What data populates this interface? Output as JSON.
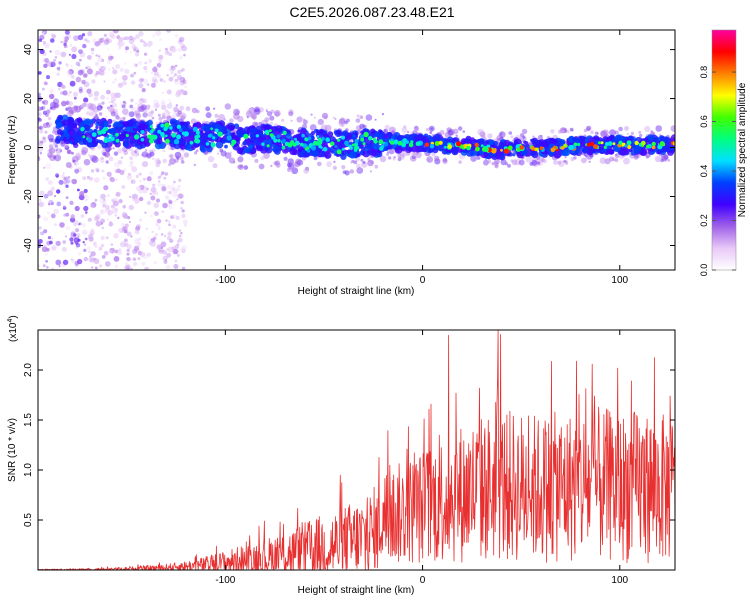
{
  "title": "C2E5.2026.087.23.48.E21",
  "chart_data": [
    {
      "type": "heatmap",
      "name": "spectrogram",
      "xlabel": "Height of straight line (km)",
      "ylabel": "Frequency (Hz)",
      "xlim": [
        -195,
        128
      ],
      "ylim": [
        -50,
        48
      ],
      "xticks": [
        -100,
        0,
        100
      ],
      "yticks": [
        -40,
        -20,
        0,
        20,
        40
      ],
      "ridge": [
        {
          "x": -190,
          "y": 8
        },
        {
          "x": -180,
          "y": 7
        },
        {
          "x": -170,
          "y": 6
        },
        {
          "x": -160,
          "y": 6
        },
        {
          "x": -150,
          "y": 6
        },
        {
          "x": -140,
          "y": 5
        },
        {
          "x": -130,
          "y": 6
        },
        {
          "x": -120,
          "y": 5
        },
        {
          "x": -110,
          "y": 4
        },
        {
          "x": -100,
          "y": 5
        },
        {
          "x": -90,
          "y": 3
        },
        {
          "x": -80,
          "y": 4
        },
        {
          "x": -70,
          "y": 3
        },
        {
          "x": -60,
          "y": 2
        },
        {
          "x": -50,
          "y": 2
        },
        {
          "x": -40,
          "y": 1
        },
        {
          "x": -30,
          "y": 2
        },
        {
          "x": -20,
          "y": 2
        },
        {
          "x": -10,
          "y": 2
        },
        {
          "x": 0,
          "y": 2
        },
        {
          "x": 10,
          "y": 1
        },
        {
          "x": 20,
          "y": 1
        },
        {
          "x": 30,
          "y": 0
        },
        {
          "x": 40,
          "y": -1
        },
        {
          "x": 50,
          "y": 0
        },
        {
          "x": 60,
          "y": 0
        },
        {
          "x": 70,
          "y": 0
        },
        {
          "x": 80,
          "y": 1
        },
        {
          "x": 90,
          "y": 1
        },
        {
          "x": 100,
          "y": 1
        },
        {
          "x": 110,
          "y": 1
        },
        {
          "x": 120,
          "y": 1
        },
        {
          "x": 128,
          "y": 1
        }
      ]
    },
    {
      "type": "colorbar",
      "name": "colorbar",
      "label": "Normalized spectral amplitude",
      "range": [
        0,
        0.97
      ],
      "ticks": [
        0.0,
        0.2,
        0.4,
        0.6,
        0.8
      ],
      "tick_labels": [
        "0.0",
        "0.2",
        "0.4",
        "0.6",
        "0.8"
      ],
      "colors": [
        "#ffffff",
        "#e8c8f8",
        "#a060e8",
        "#4000ff",
        "#0040ff",
        "#00e0ff",
        "#00ff80",
        "#40ff00",
        "#ffff00",
        "#ff8000",
        "#ff0000",
        "#ff00a0"
      ]
    },
    {
      "type": "line",
      "name": "snr",
      "xlabel": "Height of straight line (km)",
      "ylabel": "SNR (10 * v/v)",
      "y_multiplier": "(x10",
      "y_multiplier_exp": "4",
      "y_multiplier_close": ")",
      "xlim": [
        -195,
        128
      ],
      "ylim": [
        0,
        2.4
      ],
      "xticks": [
        -100,
        0,
        100
      ],
      "yticks": [
        0.5,
        1.0,
        1.5,
        2.0
      ],
      "ytick_labels": [
        "0.5",
        "1.0",
        "1.5",
        "2.0"
      ],
      "color": "#e83030",
      "envelope": [
        {
          "x": -195,
          "y": 0.005
        },
        {
          "x": -170,
          "y": 0.01
        },
        {
          "x": -150,
          "y": 0.02
        },
        {
          "x": -130,
          "y": 0.04
        },
        {
          "x": -120,
          "y": 0.06
        },
        {
          "x": -110,
          "y": 0.09
        },
        {
          "x": -100,
          "y": 0.13
        },
        {
          "x": -90,
          "y": 0.17
        },
        {
          "x": -80,
          "y": 0.21
        },
        {
          "x": -70,
          "y": 0.26
        },
        {
          "x": -60,
          "y": 0.32
        },
        {
          "x": -50,
          "y": 0.38
        },
        {
          "x": -40,
          "y": 0.43
        },
        {
          "x": -30,
          "y": 0.5
        },
        {
          "x": -23,
          "y": 0.58
        },
        {
          "x": -22,
          "y": 0.85
        },
        {
          "x": -10,
          "y": 0.95
        },
        {
          "x": 0,
          "y": 1.05
        },
        {
          "x": 10,
          "y": 1.18
        },
        {
          "x": 20,
          "y": 1.28
        },
        {
          "x": 30,
          "y": 1.35
        },
        {
          "x": 40,
          "y": 1.4
        },
        {
          "x": 50,
          "y": 1.38
        },
        {
          "x": 60,
          "y": 1.36
        },
        {
          "x": 70,
          "y": 1.38
        },
        {
          "x": 80,
          "y": 1.4
        },
        {
          "x": 90,
          "y": 1.42
        },
        {
          "x": 100,
          "y": 1.38
        },
        {
          "x": 110,
          "y": 1.4
        },
        {
          "x": 120,
          "y": 1.36
        },
        {
          "x": 128,
          "y": 1.35
        }
      ]
    }
  ]
}
